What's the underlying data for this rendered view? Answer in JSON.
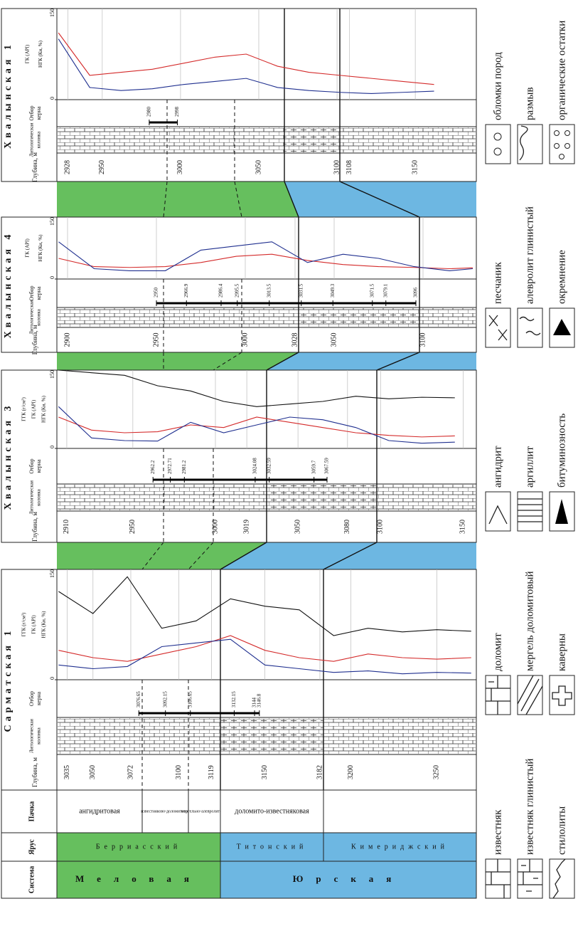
{
  "header": {
    "system": "Система",
    "stage": "Ярус",
    "member": "Пачка"
  },
  "systems": [
    "Меловая",
    "Юрская"
  ],
  "stages": [
    "Берриасский",
    "Титонский",
    "Кимериджский"
  ],
  "members": [
    "ангидритовая",
    "известняково-доломитовая",
    "мергельно-алевролитовая",
    "доломито-известняковая"
  ],
  "log_ylim": [
    0,
    150
  ],
  "log_ticks": [
    0,
    150
  ],
  "wells": [
    {
      "name": "Сарматская 1",
      "depth_title": "Глубина, м",
      "lith_title": [
        "Литологическая",
        "колонка"
      ],
      "core_title": [
        "Отбор",
        "керна"
      ],
      "depth_lim": [
        3029,
        3273
      ],
      "depth_ticks": [
        3035,
        3050,
        3072,
        3100,
        3119,
        3150,
        3182,
        3200,
        3250
      ],
      "core_depths": [
        3076.65,
        3092.15,
        3106.65,
        3132.15,
        3144,
        3146.8
      ],
      "log_depths": [
        3030,
        3050,
        3070,
        3090,
        3110,
        3130,
        3150,
        3170,
        3190,
        3210,
        3230,
        3250,
        3270
      ],
      "curves": [
        {
          "name": "ГГК (г/см³)",
          "color": "#111111",
          "values": [
            120,
            90,
            140,
            70,
            80,
            110,
            100,
            95,
            60,
            70,
            65,
            68,
            66
          ]
        },
        {
          "name": "ГК (API)",
          "color": "#d42a2a",
          "values": [
            40,
            30,
            25,
            35,
            45,
            60,
            40,
            30,
            25,
            35,
            30,
            28,
            30
          ]
        },
        {
          "name": "НГК (Ки, %)",
          "color": "#1f2f8f",
          "values": [
            20,
            15,
            18,
            45,
            50,
            55,
            20,
            15,
            10,
            12,
            8,
            10,
            9
          ]
        }
      ]
    },
    {
      "name": "Хвалынская 3",
      "depth_title": "Глубина, м",
      "lith_title": [
        "Литологическая",
        "колонка"
      ],
      "core_title": [
        "Отбор",
        "керна"
      ],
      "depth_lim": [
        2904,
        3158
      ],
      "depth_ticks": [
        2910,
        2950,
        3000,
        3019,
        3050,
        3080,
        3100,
        3150
      ],
      "core_depths": [
        2962.2,
        2972.71,
        2981.2,
        3024.08,
        3032.59,
        3059.7,
        3067.59
      ],
      "log_depths": [
        2905,
        2925,
        2945,
        2965,
        2985,
        3005,
        3025,
        3045,
        3065,
        3085,
        3105,
        3125,
        3145
      ],
      "curves": [
        {
          "name": "ГГК (г/см³)",
          "color": "#111111",
          "values": [
            150,
            145,
            140,
            120,
            110,
            90,
            80,
            85,
            90,
            100,
            95,
            98,
            97
          ]
        },
        {
          "name": "ГК (API)",
          "color": "#d42a2a",
          "values": [
            60,
            35,
            30,
            32,
            45,
            40,
            60,
            50,
            40,
            30,
            25,
            22,
            24
          ]
        },
        {
          "name": "НГК (Ки, %)",
          "color": "#1f2f8f",
          "values": [
            80,
            20,
            15,
            14,
            50,
            30,
            45,
            60,
            55,
            40,
            15,
            10,
            12
          ]
        }
      ]
    },
    {
      "name": "Хвалынская 4",
      "depth_title": "Глубина, м",
      "lith_title": [
        "Литологическая",
        "колонка"
      ],
      "core_title": [
        "Отбор",
        "керна"
      ],
      "depth_lim": [
        2894,
        3130
      ],
      "depth_ticks": [
        2900,
        2950,
        3000,
        3028,
        3050,
        3100
      ],
      "core_depths": [
        2950,
        2966.9,
        2986.4,
        2995.5,
        3013.5,
        3031.5,
        3049.3,
        3071.5,
        3079.1,
        3096
      ],
      "log_depths": [
        2895,
        2915,
        2935,
        2955,
        2975,
        2995,
        3015,
        3035,
        3055,
        3075,
        3095,
        3115,
        3128
      ],
      "curves": [
        {
          "name": "ГК (API)",
          "color": "#d42a2a",
          "values": [
            50,
            30,
            28,
            30,
            40,
            55,
            60,
            45,
            35,
            30,
            28,
            25,
            27
          ]
        },
        {
          "name": "НГК (Ки, %)",
          "color": "#1f2f8f",
          "values": [
            90,
            25,
            20,
            20,
            70,
            80,
            90,
            40,
            60,
            50,
            30,
            20,
            25
          ]
        }
      ]
    },
    {
      "name": "Хвалынская 1",
      "depth_title": "Глубина, м",
      "lith_title": [
        "Литологическая",
        "колонка"
      ],
      "core_title": [
        "Отбор",
        "керна"
      ],
      "depth_lim": [
        2921,
        3189
      ],
      "depth_ticks": [
        2928,
        2950,
        3000,
        3050,
        3100,
        3108,
        3150
      ],
      "core_depths": [
        2980,
        2998
      ],
      "log_depths": [
        2922,
        2942,
        2962,
        2982,
        3002,
        3022,
        3042,
        3062,
        3082,
        3102,
        3122,
        3142,
        3162
      ],
      "curves": [
        {
          "name": "ГК (API)",
          "color": "#d42a2a",
          "values": [
            110,
            40,
            45,
            50,
            60,
            70,
            75,
            55,
            45,
            40,
            35,
            30,
            25
          ]
        },
        {
          "name": "НГК (Ки, %)",
          "color": "#1f2f8f",
          "values": [
            100,
            20,
            15,
            18,
            25,
            30,
            35,
            20,
            15,
            12,
            10,
            12,
            14
          ]
        }
      ]
    }
  ],
  "legend": [
    "известняк",
    "известняк глинистый",
    "стилолиты",
    "доломит",
    "мергель доломитовый",
    "каверны",
    "ангидрит",
    "аргиллит",
    "битуминозность",
    "песчаник",
    "алевролит глинистый",
    "окремнение",
    "обломки пород",
    "размыв",
    "органические остатки"
  ]
}
